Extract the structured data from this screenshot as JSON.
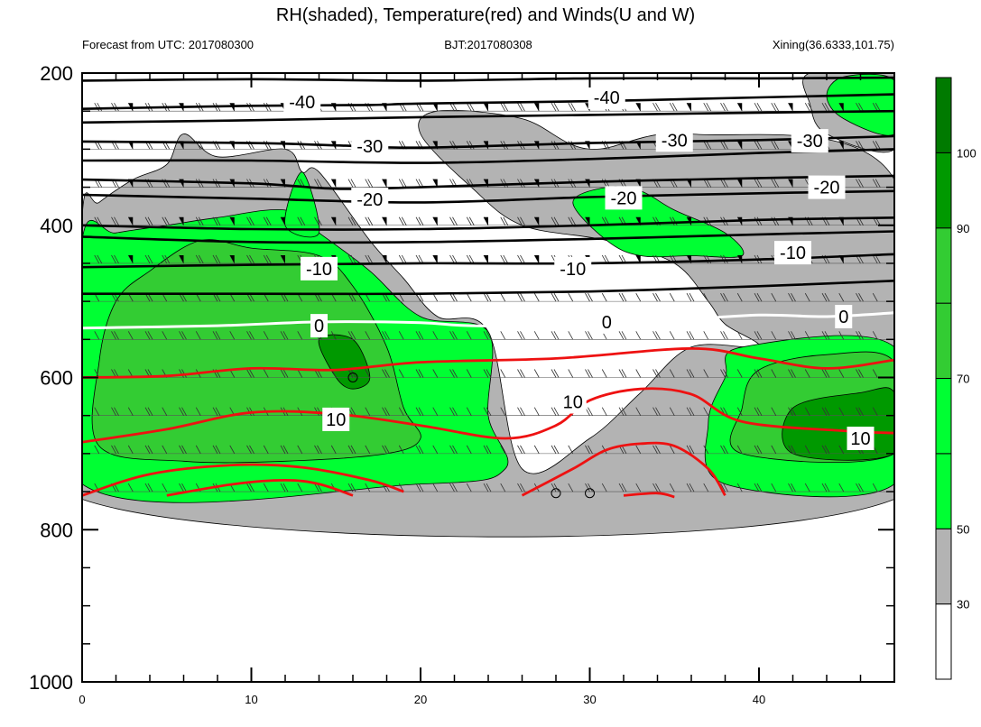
{
  "chart_data": {
    "type": "contour",
    "title": "RH(shaded), Temperature(red) and Winds(U and W)",
    "subtitle_left": "Forecast from UTC: 2017080300",
    "subtitle_center": "BJT:2017080308",
    "subtitle_right": "Xining(36.6333,101.75)",
    "x_ticks": [
      0,
      10,
      20,
      30,
      40
    ],
    "xlim": [
      0,
      48
    ],
    "y_ticks": [
      200,
      400,
      600,
      800,
      1000
    ],
    "ylim": [
      1000,
      200
    ],
    "y_scale": "linear",
    "y_inverted": true,
    "colorbar": {
      "ticks": [
        30,
        50,
        70,
        90,
        100
      ],
      "levels": [
        0,
        30,
        50,
        60,
        70,
        80,
        90,
        100
      ],
      "colors": [
        "#ffffff",
        "#b3b3b3",
        "#00ff33",
        "#00ff33",
        "#33cc33",
        "#33cc33",
        "#009900",
        "#007a00"
      ]
    },
    "rh_regions": [
      {
        "level": 30,
        "color": "#b3b3b3",
        "points": [
          [
            0,
            760
          ],
          [
            48,
            760
          ],
          [
            48,
            340
          ],
          [
            36,
            280
          ],
          [
            30,
            300
          ],
          [
            26,
            260
          ],
          [
            21,
            250
          ],
          [
            20,
            280
          ],
          [
            23,
            350
          ],
          [
            26,
            400
          ],
          [
            31,
            420
          ],
          [
            35,
            450
          ],
          [
            37,
            500
          ],
          [
            38,
            530
          ],
          [
            40,
            560
          ],
          [
            36,
            560
          ],
          [
            33,
            620
          ],
          [
            30,
            680
          ],
          [
            26,
            720
          ],
          [
            24,
            540
          ],
          [
            21,
            520
          ],
          [
            19,
            470
          ],
          [
            17,
            420
          ],
          [
            14,
            330
          ],
          [
            13,
            330
          ],
          [
            12,
            300
          ],
          [
            8,
            310
          ],
          [
            6,
            280
          ],
          [
            5,
            320
          ],
          [
            3,
            340
          ],
          [
            1,
            370
          ],
          [
            0,
            390
          ]
        ]
      },
      {
        "level": 30,
        "color": "#b3b3b3",
        "points": [
          [
            43,
            200
          ],
          [
            48,
            200
          ],
          [
            48,
            300
          ],
          [
            44,
            280
          ],
          [
            43,
            240
          ]
        ]
      },
      {
        "level": 50,
        "color": "#00ff33",
        "points": [
          [
            0,
            740
          ],
          [
            20,
            740
          ],
          [
            25,
            720
          ],
          [
            24,
            650
          ],
          [
            24,
            540
          ],
          [
            20,
            520
          ],
          [
            17,
            460
          ],
          [
            14,
            410
          ],
          [
            12,
            380
          ],
          [
            8,
            390
          ],
          [
            5,
            400
          ],
          [
            2,
            410
          ],
          [
            0,
            420
          ]
        ]
      },
      {
        "level": 50,
        "color": "#00ff33",
        "points": [
          [
            48,
            740
          ],
          [
            38,
            740
          ],
          [
            37,
            660
          ],
          [
            38,
            600
          ],
          [
            39,
            560
          ],
          [
            48,
            560
          ]
        ]
      },
      {
        "level": 50,
        "color": "#00ff33",
        "points": [
          [
            29,
            370
          ],
          [
            31,
            350
          ],
          [
            33,
            355
          ],
          [
            35,
            380
          ],
          [
            38,
            410
          ],
          [
            39,
            440
          ],
          [
            36,
            440
          ],
          [
            33,
            440
          ],
          [
            31,
            420
          ]
        ]
      },
      {
        "level": 50,
        "color": "#00ff33",
        "points": [
          [
            13,
            330
          ],
          [
            14,
            410
          ],
          [
            12,
            400
          ]
        ]
      },
      {
        "level": 50,
        "color": "#00ff33",
        "points": [
          [
            45,
            205
          ],
          [
            48,
            210
          ],
          [
            48,
            280
          ],
          [
            45,
            260
          ],
          [
            44,
            230
          ]
        ]
      },
      {
        "level": 70,
        "color": "#33cc33",
        "points": [
          [
            1,
            690
          ],
          [
            6,
            710
          ],
          [
            12,
            710
          ],
          [
            18,
            700
          ],
          [
            20,
            680
          ],
          [
            19,
            640
          ],
          [
            18,
            560
          ],
          [
            16,
            480
          ],
          [
            14,
            440
          ],
          [
            10,
            430
          ],
          [
            7,
            420
          ],
          [
            4,
            460
          ],
          [
            2,
            500
          ],
          [
            1,
            580
          ]
        ]
      },
      {
        "level": 70,
        "color": "#33cc33",
        "points": [
          [
            39,
            700
          ],
          [
            48,
            700
          ],
          [
            48,
            580
          ],
          [
            44,
            570
          ],
          [
            40,
            590
          ],
          [
            39,
            640
          ]
        ]
      },
      {
        "level": 90,
        "color": "#009900",
        "points": [
          [
            14,
            550
          ],
          [
            16,
            550
          ],
          [
            17,
            600
          ],
          [
            16,
            615
          ],
          [
            15,
            600
          ]
        ]
      },
      {
        "level": 90,
        "color": "#009900",
        "points": [
          [
            42,
            700
          ],
          [
            48,
            700
          ],
          [
            48,
            620
          ],
          [
            46,
            620
          ],
          [
            42,
            640
          ]
        ]
      }
    ],
    "black_isotherms": [
      {
        "values": [
          [
            0,
            210
          ],
          [
            10,
            208
          ],
          [
            20,
            210
          ],
          [
            30,
            207
          ],
          [
            40,
            207
          ],
          [
            48,
            206
          ]
        ]
      },
      {
        "values": [
          [
            0,
            247
          ],
          [
            10,
            243
          ],
          [
            17,
            242
          ],
          [
            20,
            240
          ],
          [
            30,
            237
          ],
          [
            40,
            232
          ],
          [
            48,
            228
          ]
        ]
      },
      {
        "values": [
          [
            0,
            265
          ],
          [
            10,
            262
          ],
          [
            20,
            258
          ],
          [
            30,
            255
          ],
          [
            40,
            252
          ],
          [
            48,
            250
          ]
        ]
      },
      {
        "values": [
          [
            0,
            290
          ],
          [
            10,
            292
          ],
          [
            15,
            295
          ],
          [
            20,
            298
          ],
          [
            30,
            292
          ],
          [
            40,
            288
          ],
          [
            48,
            283
          ]
        ]
      },
      {
        "values": [
          [
            0,
            315
          ],
          [
            10,
            315
          ],
          [
            20,
            318
          ],
          [
            30,
            313
          ],
          [
            40,
            305
          ],
          [
            48,
            300
          ]
        ]
      },
      {
        "values": [
          [
            0,
            340
          ],
          [
            10,
            345
          ],
          [
            15,
            352
          ],
          [
            20,
            350
          ],
          [
            30,
            343
          ],
          [
            40,
            338
          ],
          [
            48,
            335
          ]
        ]
      },
      {
        "values": [
          [
            0,
            360
          ],
          [
            10,
            365
          ],
          [
            20,
            370
          ],
          [
            30,
            363
          ],
          [
            40,
            358
          ],
          [
            48,
            355
          ]
        ]
      },
      {
        "values": [
          [
            0,
            400
          ],
          [
            10,
            405
          ],
          [
            20,
            405
          ],
          [
            30,
            400
          ],
          [
            40,
            393
          ],
          [
            48,
            390
          ]
        ]
      },
      {
        "values": [
          [
            0,
            415
          ],
          [
            10,
            422
          ],
          [
            20,
            422
          ],
          [
            30,
            418
          ],
          [
            40,
            412
          ],
          [
            48,
            408
          ]
        ]
      },
      {
        "values": [
          [
            0,
            455
          ],
          [
            10,
            452
          ],
          [
            20,
            450
          ],
          [
            30,
            450
          ],
          [
            40,
            445
          ],
          [
            48,
            438
          ]
        ]
      },
      {
        "values": [
          [
            0,
            490
          ],
          [
            10,
            490
          ],
          [
            20,
            490
          ],
          [
            30,
            487
          ],
          [
            40,
            480
          ],
          [
            48,
            473
          ]
        ]
      }
    ],
    "white_isotherm": {
      "values": [
        [
          0,
          535
        ],
        [
          8,
          532
        ],
        [
          14,
          527
        ],
        [
          20,
          528
        ],
        [
          23,
          532
        ],
        [
          30,
          532
        ],
        [
          35,
          525
        ],
        [
          40,
          518
        ],
        [
          44,
          520
        ],
        [
          48,
          515
        ]
      ]
    },
    "red_isotherms": [
      {
        "values": [
          [
            0,
            600
          ],
          [
            5,
            598
          ],
          [
            10,
            588
          ],
          [
            15,
            590
          ],
          [
            20,
            580
          ],
          [
            28,
            575
          ],
          [
            36,
            562
          ],
          [
            40,
            575
          ],
          [
            44,
            588
          ],
          [
            48,
            577
          ]
        ]
      },
      {
        "values": [
          [
            0,
            685
          ],
          [
            5,
            668
          ],
          [
            10,
            646
          ],
          [
            15,
            648
          ],
          [
            20,
            663
          ],
          [
            25,
            680
          ],
          [
            28,
            663
          ],
          [
            30,
            630
          ],
          [
            33,
            615
          ],
          [
            36,
            622
          ],
          [
            39,
            658
          ],
          [
            45,
            670
          ],
          [
            48,
            673
          ]
        ]
      },
      {
        "values": [
          [
            0,
            755
          ],
          [
            4,
            727
          ],
          [
            9,
            715
          ],
          [
            13,
            718
          ],
          [
            17,
            735
          ],
          [
            19,
            750
          ]
        ]
      },
      {
        "values": [
          [
            5,
            755
          ],
          [
            9,
            740
          ],
          [
            12,
            735
          ],
          [
            14,
            740
          ],
          [
            16,
            755
          ]
        ]
      },
      {
        "values": [
          [
            26,
            755
          ],
          [
            29,
            720
          ],
          [
            31,
            695
          ],
          [
            33,
            687
          ],
          [
            35,
            690
          ],
          [
            37,
            720
          ],
          [
            38,
            755
          ]
        ]
      },
      {
        "values": [
          [
            32,
            755
          ],
          [
            34,
            752
          ],
          [
            35,
            757
          ]
        ]
      }
    ],
    "contour_labels": [
      {
        "text": "-40",
        "x": 13,
        "y": 238
      },
      {
        "text": "-40",
        "x": 31,
        "y": 232
      },
      {
        "text": "-30",
        "x": 17,
        "y": 296
      },
      {
        "text": "-30",
        "x": 35,
        "y": 288
      },
      {
        "text": "-30",
        "x": 43,
        "y": 289
      },
      {
        "text": "-20",
        "x": 17,
        "y": 366
      },
      {
        "text": "-20",
        "x": 32,
        "y": 364
      },
      {
        "text": "-20",
        "x": 44,
        "y": 350
      },
      {
        "text": "-10",
        "x": 14,
        "y": 457
      },
      {
        "text": "-10",
        "x": 29,
        "y": 457
      },
      {
        "text": "-10",
        "x": 42,
        "y": 436
      },
      {
        "text": "0",
        "x": 14,
        "y": 532
      },
      {
        "text": "0",
        "x": 31,
        "y": 527
      },
      {
        "text": "0",
        "x": 45,
        "y": 520
      },
      {
        "text": "10",
        "x": 15,
        "y": 655
      },
      {
        "text": "10",
        "x": 29,
        "y": 632
      },
      {
        "text": "10",
        "x": 46,
        "y": 680
      }
    ],
    "calm_points": [
      {
        "x": 16,
        "y": 600
      },
      {
        "x": 28,
        "y": 752
      },
      {
        "x": 30,
        "y": 752
      }
    ],
    "wind_levels": [
      200,
      250,
      300,
      350,
      400,
      450,
      500,
      550,
      600,
      650,
      700,
      750
    ]
  }
}
